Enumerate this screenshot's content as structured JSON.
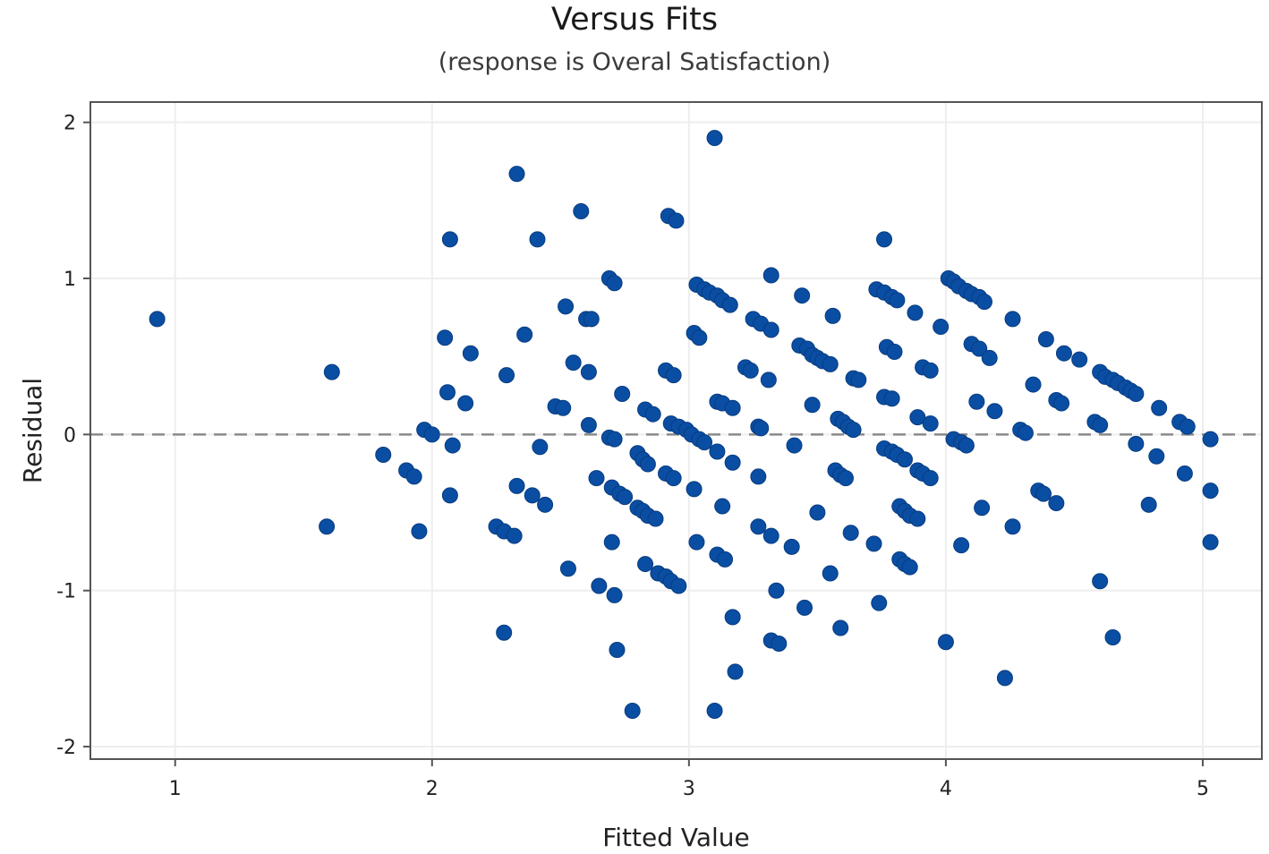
{
  "chart_data": {
    "type": "scatter",
    "title": "Versus Fits",
    "subtitle": "(response is Overal Satisfaction)",
    "xlabel": "Fitted Value",
    "ylabel": "Residual",
    "xlim": [
      0.67,
      5.23
    ],
    "ylim": [
      -2.08,
      2.13
    ],
    "xticks": [
      1,
      2,
      3,
      4,
      5
    ],
    "yticks": [
      -2,
      -1,
      0,
      1,
      2
    ],
    "grid": true,
    "reference_line": 0,
    "point_color": "#0a4ea3",
    "points": [
      [
        0.93,
        0.74
      ],
      [
        1.61,
        0.4
      ],
      [
        1.59,
        -0.59
      ],
      [
        1.81,
        -0.13
      ],
      [
        1.9,
        -0.23
      ],
      [
        1.93,
        -0.27
      ],
      [
        1.95,
        -0.62
      ],
      [
        1.97,
        0.03
      ],
      [
        2.0,
        0.0
      ],
      [
        2.05,
        0.62
      ],
      [
        2.06,
        0.27
      ],
      [
        2.07,
        1.25
      ],
      [
        2.07,
        -0.39
      ],
      [
        2.08,
        -0.07
      ],
      [
        2.13,
        0.2
      ],
      [
        2.15,
        0.52
      ],
      [
        2.25,
        -0.59
      ],
      [
        2.28,
        -0.62
      ],
      [
        2.32,
        -0.65
      ],
      [
        2.28,
        -1.27
      ],
      [
        2.29,
        0.38
      ],
      [
        2.33,
        1.67
      ],
      [
        2.33,
        -0.33
      ],
      [
        2.36,
        0.64
      ],
      [
        2.39,
        -0.39
      ],
      [
        2.41,
        1.25
      ],
      [
        2.42,
        -0.08
      ],
      [
        2.44,
        -0.45
      ],
      [
        2.48,
        0.18
      ],
      [
        2.51,
        0.17
      ],
      [
        2.52,
        0.82
      ],
      [
        2.53,
        -0.86
      ],
      [
        2.55,
        0.46
      ],
      [
        2.58,
        1.43
      ],
      [
        2.6,
        0.74
      ],
      [
        2.62,
        0.74
      ],
      [
        2.61,
        0.4
      ],
      [
        2.61,
        0.06
      ],
      [
        2.64,
        -0.28
      ],
      [
        2.65,
        -0.97
      ],
      [
        2.69,
        1.0
      ],
      [
        2.71,
        0.97
      ],
      [
        2.69,
        -0.02
      ],
      [
        2.71,
        -0.03
      ],
      [
        2.7,
        -0.34
      ],
      [
        2.73,
        -0.38
      ],
      [
        2.75,
        -0.4
      ],
      [
        2.7,
        -0.69
      ],
      [
        2.71,
        -1.03
      ],
      [
        2.72,
        -1.38
      ],
      [
        2.74,
        0.26
      ],
      [
        2.78,
        -1.77
      ],
      [
        2.8,
        -0.12
      ],
      [
        2.82,
        -0.16
      ],
      [
        2.84,
        -0.19
      ],
      [
        2.8,
        -0.47
      ],
      [
        2.82,
        -0.49
      ],
      [
        2.84,
        -0.52
      ],
      [
        2.87,
        -0.54
      ],
      [
        2.83,
        0.16
      ],
      [
        2.86,
        0.13
      ],
      [
        2.83,
        -0.83
      ],
      [
        2.88,
        -0.89
      ],
      [
        2.91,
        -0.91
      ],
      [
        2.93,
        -0.94
      ],
      [
        2.96,
        -0.97
      ],
      [
        2.91,
        0.41
      ],
      [
        2.94,
        0.38
      ],
      [
        2.92,
        1.4
      ],
      [
        2.95,
        1.37
      ],
      [
        2.91,
        -0.25
      ],
      [
        2.94,
        -0.28
      ],
      [
        2.93,
        0.07
      ],
      [
        2.96,
        0.05
      ],
      [
        2.99,
        0.03
      ],
      [
        3.01,
        0.0
      ],
      [
        3.04,
        -0.03
      ],
      [
        3.06,
        -0.05
      ],
      [
        3.02,
        0.65
      ],
      [
        3.04,
        0.62
      ],
      [
        3.02,
        -0.35
      ],
      [
        3.03,
        -0.69
      ],
      [
        3.03,
        0.96
      ],
      [
        3.06,
        0.93
      ],
      [
        3.08,
        0.91
      ],
      [
        3.11,
        0.89
      ],
      [
        3.13,
        0.86
      ],
      [
        3.16,
        0.83
      ],
      [
        3.1,
        1.9
      ],
      [
        3.11,
        0.21
      ],
      [
        3.13,
        0.2
      ],
      [
        3.17,
        0.17
      ],
      [
        3.11,
        -0.11
      ],
      [
        3.17,
        -0.18
      ],
      [
        3.11,
        -0.77
      ],
      [
        3.14,
        -0.8
      ],
      [
        3.13,
        -0.46
      ],
      [
        3.17,
        -1.17
      ],
      [
        3.18,
        -1.52
      ],
      [
        3.1,
        -1.77
      ],
      [
        3.22,
        0.43
      ],
      [
        3.24,
        0.41
      ],
      [
        3.25,
        0.74
      ],
      [
        3.28,
        0.71
      ],
      [
        3.27,
        0.05
      ],
      [
        3.28,
        0.04
      ],
      [
        3.27,
        -0.27
      ],
      [
        3.27,
        -0.59
      ],
      [
        3.31,
        0.35
      ],
      [
        3.32,
        0.67
      ],
      [
        3.32,
        1.02
      ],
      [
        3.32,
        -0.65
      ],
      [
        3.34,
        -1.0
      ],
      [
        3.32,
        -1.32
      ],
      [
        3.35,
        -1.34
      ],
      [
        3.4,
        -0.72
      ],
      [
        3.41,
        -0.07
      ],
      [
        3.43,
        0.57
      ],
      [
        3.44,
        0.89
      ],
      [
        3.45,
        -1.11
      ],
      [
        3.46,
        0.55
      ],
      [
        3.48,
        0.51
      ],
      [
        3.5,
        0.49
      ],
      [
        3.52,
        0.47
      ],
      [
        3.55,
        0.45
      ],
      [
        3.48,
        0.19
      ],
      [
        3.5,
        -0.5
      ],
      [
        3.55,
        -0.89
      ],
      [
        3.56,
        0.76
      ],
      [
        3.57,
        -0.23
      ],
      [
        3.59,
        -0.26
      ],
      [
        3.61,
        -0.28
      ],
      [
        3.58,
        0.1
      ],
      [
        3.6,
        0.08
      ],
      [
        3.62,
        0.05
      ],
      [
        3.64,
        0.03
      ],
      [
        3.59,
        -1.24
      ],
      [
        3.63,
        -0.63
      ],
      [
        3.64,
        0.36
      ],
      [
        3.66,
        0.35
      ],
      [
        3.72,
        -0.7
      ],
      [
        3.74,
        -1.08
      ],
      [
        3.73,
        0.93
      ],
      [
        3.76,
        0.91
      ],
      [
        3.79,
        0.88
      ],
      [
        3.81,
        0.86
      ],
      [
        3.76,
        1.25
      ],
      [
        3.76,
        0.24
      ],
      [
        3.79,
        0.23
      ],
      [
        3.77,
        0.56
      ],
      [
        3.8,
        0.53
      ],
      [
        3.76,
        -0.09
      ],
      [
        3.79,
        -0.11
      ],
      [
        3.81,
        -0.13
      ],
      [
        3.84,
        -0.16
      ],
      [
        3.82,
        -0.46
      ],
      [
        3.84,
        -0.49
      ],
      [
        3.86,
        -0.52
      ],
      [
        3.89,
        -0.54
      ],
      [
        3.82,
        -0.8
      ],
      [
        3.84,
        -0.83
      ],
      [
        3.86,
        -0.85
      ],
      [
        3.88,
        0.78
      ],
      [
        3.89,
        0.11
      ],
      [
        3.89,
        -0.23
      ],
      [
        3.91,
        -0.25
      ],
      [
        3.94,
        -0.28
      ],
      [
        3.91,
        0.43
      ],
      [
        3.94,
        0.41
      ],
      [
        3.94,
        0.07
      ],
      [
        3.98,
        0.69
      ],
      [
        4.0,
        -1.33
      ],
      [
        4.01,
        1.0
      ],
      [
        4.03,
        0.98
      ],
      [
        4.05,
        0.95
      ],
      [
        4.08,
        0.92
      ],
      [
        4.1,
        0.9
      ],
      [
        4.13,
        0.88
      ],
      [
        4.15,
        0.85
      ],
      [
        4.03,
        -0.03
      ],
      [
        4.06,
        -0.05
      ],
      [
        4.08,
        -0.07
      ],
      [
        4.06,
        -0.71
      ],
      [
        4.1,
        0.58
      ],
      [
        4.13,
        0.55
      ],
      [
        4.17,
        0.49
      ],
      [
        4.12,
        0.21
      ],
      [
        4.19,
        0.15
      ],
      [
        4.14,
        -0.47
      ],
      [
        4.23,
        -1.56
      ],
      [
        4.26,
        0.74
      ],
      [
        4.26,
        -0.59
      ],
      [
        4.29,
        0.03
      ],
      [
        4.31,
        0.01
      ],
      [
        4.34,
        0.32
      ],
      [
        4.36,
        -0.36
      ],
      [
        4.38,
        -0.38
      ],
      [
        4.39,
        0.61
      ],
      [
        4.43,
        0.22
      ],
      [
        4.45,
        0.2
      ],
      [
        4.43,
        -0.44
      ],
      [
        4.46,
        0.52
      ],
      [
        4.52,
        0.48
      ],
      [
        4.58,
        0.08
      ],
      [
        4.6,
        0.06
      ],
      [
        4.6,
        0.4
      ],
      [
        4.62,
        0.37
      ],
      [
        4.65,
        0.35
      ],
      [
        4.67,
        0.33
      ],
      [
        4.7,
        0.3
      ],
      [
        4.72,
        0.28
      ],
      [
        4.74,
        0.26
      ],
      [
        4.6,
        -0.94
      ],
      [
        4.65,
        -1.3
      ],
      [
        4.74,
        -0.06
      ],
      [
        4.79,
        -0.45
      ],
      [
        4.83,
        0.17
      ],
      [
        4.82,
        -0.14
      ],
      [
        4.91,
        0.08
      ],
      [
        4.94,
        0.05
      ],
      [
        4.93,
        -0.25
      ],
      [
        5.03,
        -0.03
      ],
      [
        5.03,
        -0.36
      ],
      [
        5.03,
        -0.69
      ]
    ]
  }
}
